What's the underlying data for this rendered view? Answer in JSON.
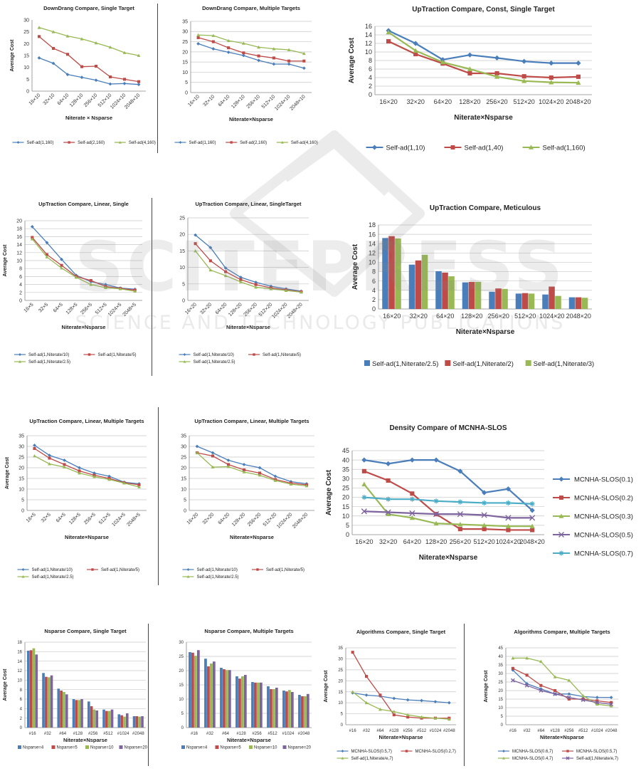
{
  "watermark": {
    "brand": "SCITEPRESS",
    "tagline": "SCIENCE AND TECHNOLOGY PUBLICATIONS"
  },
  "colors": {
    "blue": "#4a7ebb",
    "red": "#be4b48",
    "green": "#98b954",
    "purple": "#7e649e",
    "cyan": "#4bacc6",
    "orange": "#f79646"
  },
  "chart_data": [
    {
      "id": "c1",
      "type": "line",
      "title": "DownDrang Compare, Single Target",
      "xlabel": "Niterate × Nsparse",
      "ylabel": "Average Cost",
      "categories": [
        "16×10",
        "32×10",
        "64×10",
        "128×10",
        "256×10",
        "512×10",
        "1024×10",
        "2048×10"
      ],
      "ylim": [
        0,
        30
      ],
      "yticks": [
        0,
        5,
        10,
        15,
        20,
        25,
        30
      ],
      "grid": false,
      "legend": "bottom",
      "series": [
        {
          "name": "Self-ad(1,160)",
          "values": [
            14,
            11.7,
            7,
            5.8,
            4.6,
            3,
            3.2,
            2.8
          ]
        },
        {
          "name": "Self-ad(2,160)",
          "values": [
            23,
            18,
            15.5,
            10.3,
            10.5,
            6,
            5,
            4
          ]
        },
        {
          "name": "Self-ad(4,160)",
          "values": [
            26.8,
            25,
            23.2,
            22,
            20.3,
            18.5,
            16.2,
            15
          ]
        }
      ]
    },
    {
      "id": "c2",
      "type": "line",
      "title": "DownDrang Compare, Multiple Targets",
      "xlabel": "Niterate×Nsparse",
      "ylabel": "",
      "categories": [
        "16×10",
        "32×10",
        "64×10",
        "128×10",
        "256×10",
        "512×10",
        "1024×10",
        "2048×10"
      ],
      "ylim": [
        0,
        35
      ],
      "yticks": [
        0,
        5,
        10,
        15,
        20,
        25,
        30,
        35
      ],
      "grid": true,
      "legend": "bottom",
      "series": [
        {
          "name": "Self-ad(1,160)",
          "values": [
            24,
            21.5,
            19.8,
            18.2,
            15.8,
            14,
            14,
            12
          ]
        },
        {
          "name": "Self-ad(2,160)",
          "values": [
            27,
            25,
            22,
            19.5,
            18,
            17,
            15.5,
            15.5
          ]
        },
        {
          "name": "Self-ad(4,160)",
          "values": [
            28.3,
            28,
            25.5,
            24.2,
            22.3,
            21.5,
            21,
            19.2
          ]
        }
      ]
    },
    {
      "id": "c3",
      "type": "line",
      "title": "UpTraction Compare, Const, Single Target",
      "xlabel": "Niterate×Nsparse",
      "ylabel": "Average Cost",
      "categories": [
        "16×20",
        "32×20",
        "64×20",
        "128×20",
        "256×20",
        "512×20",
        "1024×20",
        "2048×20"
      ],
      "ylim": [
        0,
        16
      ],
      "yticks": [
        0,
        2,
        4,
        6,
        8,
        10,
        12,
        14,
        16
      ],
      "grid": true,
      "legend": "bottom",
      "series": [
        {
          "name": "Self-ad(1,10)",
          "values": [
            15,
            12,
            8.2,
            9.3,
            8.6,
            7.8,
            7.4,
            7.4
          ]
        },
        {
          "name": "Self-ad(1,40)",
          "values": [
            12.5,
            9.5,
            7.3,
            5,
            5,
            4.3,
            4,
            4.2
          ]
        },
        {
          "name": "Self-ad(1,160)",
          "values": [
            14.6,
            10.3,
            7.6,
            6,
            4.2,
            3.2,
            2.9,
            2.8
          ]
        }
      ]
    },
    {
      "id": "c4",
      "type": "line",
      "title": "UpTraction Compare, Linear, Single",
      "xlabel": "Niterate×Nsparse",
      "ylabel": "Average Cost",
      "categories": [
        "16×5",
        "32×5",
        "64×5",
        "128×5",
        "256×5",
        "512×5",
        "1024×5",
        "2048×5"
      ],
      "ylim": [
        0,
        20
      ],
      "yticks": [
        0,
        2,
        4,
        6,
        8,
        10,
        12,
        14,
        16,
        18,
        20
      ],
      "grid": true,
      "legend": "bottom",
      "series": [
        {
          "name": "Self-ad(1,Niterate/10)",
          "values": [
            18.5,
            14.5,
            10.3,
            6.3,
            4.7,
            4,
            3.1,
            2.8
          ]
        },
        {
          "name": "Self-ad(1,Niterate/5)",
          "values": [
            15.8,
            11.5,
            8.8,
            6,
            5,
            3.5,
            3,
            2.6
          ]
        },
        {
          "name": "Self-ad(1,Niterate/2.5)",
          "values": [
            15.4,
            10.9,
            8.1,
            5.8,
            4,
            3.2,
            2.9,
            2.3
          ]
        }
      ]
    },
    {
      "id": "c5",
      "type": "line",
      "title": "UpTraction Compare, Linear, SingleTarget",
      "xlabel": "Niterate×Nsparse",
      "ylabel": "",
      "categories": [
        "16×20",
        "32×20",
        "64×20",
        "128×20",
        "256×20",
        "512×20",
        "1024×20",
        "2048×20"
      ],
      "ylim": [
        0,
        25
      ],
      "yticks": [
        0,
        5,
        10,
        15,
        20,
        25
      ],
      "grid": true,
      "legend": "bottom",
      "series": [
        {
          "name": "Self-ad(1,Niterate/10)",
          "values": [
            19.8,
            16,
            9.8,
            7,
            5.5,
            4.3,
            3.5,
            2.8
          ]
        },
        {
          "name": "Self-ad(1,Niterate/5)",
          "values": [
            17.2,
            12,
            8.7,
            6.3,
            4.8,
            3.8,
            3.2,
            2.6
          ]
        },
        {
          "name": "Self-ad(1,Niterate/2.5)",
          "values": [
            15,
            9.2,
            7.5,
            5.6,
            4,
            3.5,
            3,
            2.5
          ]
        }
      ]
    },
    {
      "id": "c6",
      "type": "bar",
      "title": "UpTraction Compare, Meticulous",
      "xlabel": "Niterate×Nsparse",
      "ylabel": "Average Cost",
      "categories": [
        "16×20",
        "32×20",
        "64×20",
        "128×20",
        "256×20",
        "512×20",
        "1024×20",
        "2048×20"
      ],
      "ylim": [
        0,
        18
      ],
      "yticks": [
        0,
        2,
        4,
        6,
        8,
        10,
        12,
        14,
        16,
        18
      ],
      "grid": true,
      "legend": "bottom",
      "series": [
        {
          "name": "Self-ad(1,Niterate/2.5)",
          "values": [
            15.2,
            9.5,
            8.1,
            5.7,
            3.7,
            3.3,
            3.1,
            2.5
          ]
        },
        {
          "name": "Self-ad(1,Niterate/2)",
          "values": [
            15.6,
            10.4,
            7.8,
            5.8,
            4.4,
            3.4,
            4.8,
            2.5
          ]
        },
        {
          "name": "Self-ad(1,Niterate/3)",
          "values": [
            15.1,
            11.6,
            7,
            5.8,
            4.3,
            3.3,
            2.8,
            2.4
          ]
        }
      ]
    },
    {
      "id": "c7",
      "type": "line",
      "title": "UpTraction Compare, Linear, Multiple Targets",
      "xlabel": "Niterate×Nsparse",
      "ylabel": "Average Cost",
      "categories": [
        "16×5",
        "32×5",
        "64×5",
        "128×5",
        "256×5",
        "512×5",
        "1024×5",
        "2048×5"
      ],
      "ylim": [
        0,
        35
      ],
      "yticks": [
        0,
        5,
        10,
        15,
        20,
        25,
        30,
        35
      ],
      "grid": true,
      "legend": "bottom",
      "series": [
        {
          "name": "Self-ad(1,Niterate/10)",
          "values": [
            30.5,
            25.8,
            23.5,
            20,
            17.5,
            16,
            13.2,
            12.5
          ]
        },
        {
          "name": "Self-ad(1,Niterate/5)",
          "values": [
            29,
            24.5,
            21.5,
            18.5,
            16.5,
            15,
            13,
            12
          ]
        },
        {
          "name": "Self-ad(1,Niterate/2.5)",
          "values": [
            25.5,
            21.8,
            20.3,
            17.5,
            15.8,
            14.5,
            12.8,
            11
          ]
        }
      ]
    },
    {
      "id": "c8",
      "type": "line",
      "title": "UpTraction Compare, Linear, Multiple Targets",
      "xlabel": "Niterate×Nsparse",
      "ylabel": "",
      "categories": [
        "16×20",
        "32×20",
        "64×20",
        "128×20",
        "256×20",
        "512×20",
        "1024×20",
        "2048×20"
      ],
      "ylim": [
        0,
        35
      ],
      "yticks": [
        0,
        5,
        10,
        15,
        20,
        25,
        30,
        35
      ],
      "grid": true,
      "legend": "bottom",
      "series": [
        {
          "name": "Self-ad(1,Niterate/10)",
          "values": [
            30,
            27,
            23.5,
            21.5,
            20,
            16,
            13.5,
            12.5
          ]
        },
        {
          "name": "Self-ad(1,Niterate/5)",
          "values": [
            27,
            25.5,
            21.5,
            19,
            17.5,
            14.5,
            12.8,
            12
          ]
        },
        {
          "name": "Self-ad(1,Niterate/2.5)",
          "values": [
            27,
            20.3,
            20.5,
            18,
            16.5,
            14,
            12.3,
            11.5
          ]
        }
      ]
    },
    {
      "id": "c9",
      "type": "line",
      "title": "Density Compare of MCNHA-SLOS",
      "xlabel": "Niterate×Nsparse",
      "ylabel": "Average Cost",
      "categories": [
        "16×20",
        "32×20",
        "64×20",
        "128×20",
        "256×20",
        "512×20",
        "1024×20",
        "2048×20"
      ],
      "ylim": [
        0,
        45
      ],
      "yticks": [
        0,
        5,
        10,
        15,
        20,
        25,
        30,
        35,
        40,
        45
      ],
      "grid": true,
      "legend": "right",
      "series": [
        {
          "name": "MCNHA-SLOS(0.1)",
          "values": [
            40,
            38,
            40,
            40,
            34,
            22.5,
            24.5,
            13
          ]
        },
        {
          "name": "MCNHA-SLOS(0.2)",
          "values": [
            34,
            29,
            22,
            11,
            3,
            3,
            2.5,
            2.5
          ]
        },
        {
          "name": "MCNHA-SLOS(0.3)",
          "values": [
            27,
            11,
            9,
            6,
            5.5,
            5,
            4.5,
            4.5
          ]
        },
        {
          "name": "MCNHA-SLOS(0.5)",
          "values": [
            12.5,
            12,
            11.5,
            11,
            11,
            10.5,
            9,
            9
          ]
        },
        {
          "name": "MCNHA-SLOS(0.7)",
          "values": [
            20,
            19,
            19,
            18,
            17.5,
            17,
            17,
            16.5
          ]
        }
      ]
    },
    {
      "id": "c10",
      "type": "bar",
      "title": "Nsparse Compare, Single Target",
      "xlabel": "Niterate×Nsparse",
      "ylabel": "Average Cost",
      "categories": [
        "#16",
        "#32",
        "#64",
        "#128",
        "#256",
        "#512",
        "#1024",
        "#2048"
      ],
      "ylim": [
        0,
        18
      ],
      "yticks": [
        0,
        2,
        4,
        6,
        8,
        10,
        12,
        14,
        16,
        18
      ],
      "grid": true,
      "legend": "bottom",
      "series": [
        {
          "name": "Nsparse=4",
          "values": [
            16.2,
            11.5,
            8.2,
            6,
            5.5,
            3.8,
            2.8,
            2.4
          ]
        },
        {
          "name": "Nsparse=5",
          "values": [
            16.3,
            10.7,
            7.8,
            5.8,
            4.5,
            3.5,
            2.6,
            2.4
          ]
        },
        {
          "name": "Nsparse=10",
          "values": [
            16.7,
            10.6,
            7.5,
            5.8,
            3.8,
            3.5,
            2.3,
            2.3
          ]
        },
        {
          "name": "Nsparse=20",
          "values": [
            15.4,
            11,
            7,
            6,
            3.6,
            3.8,
            3,
            2.4
          ]
        }
      ]
    },
    {
      "id": "c11",
      "type": "bar",
      "title": "Nsparse Compare, Multiple Targets",
      "xlabel": "Niterate×Nsparse",
      "ylabel": "",
      "categories": [
        "#16",
        "#32",
        "#64",
        "#128",
        "#256",
        "#512",
        "#1024",
        "#2048"
      ],
      "ylim": [
        0,
        30
      ],
      "yticks": [
        0,
        5,
        10,
        15,
        20,
        25,
        30
      ],
      "grid": true,
      "legend": "bottom",
      "series": [
        {
          "name": "Nsparse=4",
          "values": [
            26.5,
            24.2,
            21,
            18,
            16,
            14.5,
            13,
            11.5
          ]
        },
        {
          "name": "Nsparse=5",
          "values": [
            26.3,
            21.5,
            20.5,
            17.2,
            15.8,
            13.5,
            12.7,
            11
          ]
        },
        {
          "name": "Nsparse=10",
          "values": [
            25.2,
            22.5,
            20.2,
            18,
            15.8,
            13.5,
            13.2,
            11
          ]
        },
        {
          "name": "Nsparse=20",
          "values": [
            27.2,
            23.2,
            20.2,
            18.5,
            15.8,
            14,
            12.5,
            11.8
          ]
        }
      ]
    },
    {
      "id": "c12",
      "type": "line",
      "title": "Algorithms Compare, Single Target",
      "xlabel": "Niterate×Nsparse",
      "ylabel": "Average Cost",
      "categories": [
        "#16",
        "#32",
        "#64",
        "#128",
        "#256",
        "#512",
        "#1024",
        "#2048"
      ],
      "ylim": [
        0,
        35
      ],
      "yticks": [
        0,
        5,
        10,
        15,
        20,
        25,
        30,
        35
      ],
      "grid": true,
      "legend": "bottom",
      "series": [
        {
          "name": "MCNHA-SLOS(0.5,7)",
          "values": [
            14.5,
            13.5,
            13,
            12,
            11.3,
            11,
            10.5,
            10
          ]
        },
        {
          "name": "MCNHA-SLOS(0.2,7)",
          "values": [
            33,
            22,
            13.5,
            4.5,
            3.5,
            3,
            3,
            3
          ]
        },
        {
          "name": "Self-ad(1,Niterate/e,7)",
          "values": [
            15,
            10,
            7,
            6,
            4.5,
            3.5,
            3,
            2.5
          ]
        }
      ]
    },
    {
      "id": "c13",
      "type": "line",
      "title": "Algorithms Compare, Multiple Targets",
      "xlabel": "Niterate×Nsparse",
      "ylabel": "Average Cost",
      "categories": [
        "#16",
        "#32",
        "#64",
        "#128",
        "#256",
        "#512",
        "#1024",
        "#2048"
      ],
      "ylim": [
        0,
        45
      ],
      "yticks": [
        0,
        5,
        10,
        15,
        20,
        25,
        30,
        35,
        40,
        45
      ],
      "grid": true,
      "legend": "bottom",
      "series": [
        {
          "name": "MCNHA-SLOS(0.6,7)",
          "values": [
            32,
            24,
            21,
            18,
            18,
            16.5,
            16,
            16
          ]
        },
        {
          "name": "MCNHA-SLOS(0.5,7)",
          "values": [
            33,
            29,
            23,
            20,
            15,
            15,
            14,
            13
          ]
        },
        {
          "name": "MCNHA-SLOS(0.4,7)",
          "values": [
            39,
            39,
            37,
            28,
            26,
            17,
            12,
            11
          ]
        },
        {
          "name": "Self-ad(1,Niterate/e,7)",
          "values": [
            26,
            23,
            20,
            18,
            16,
            14.5,
            13,
            12
          ]
        }
      ]
    }
  ]
}
